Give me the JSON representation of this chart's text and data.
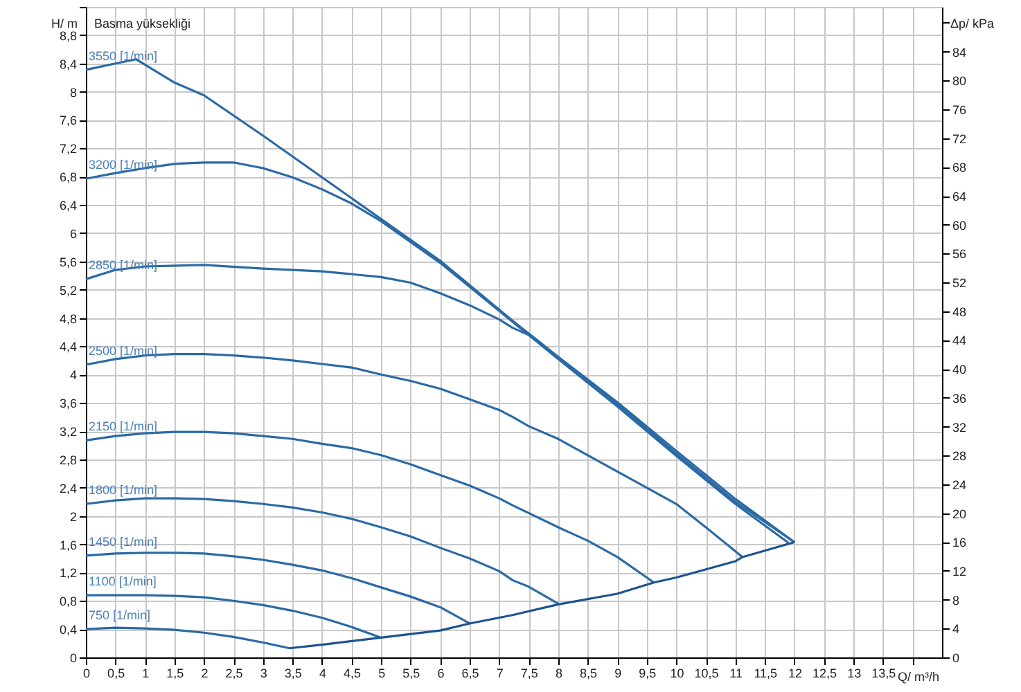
{
  "chart_data": {
    "type": "line",
    "xlabel": "Q/ m³/h",
    "ylabel": "H/ m",
    "y2label": "Δp/ kPa",
    "annotations": [
      "Basma yüksekliği"
    ],
    "grid": true,
    "xlim": [
      0,
      14.5
    ],
    "ylim": [
      0,
      9.2
    ],
    "y2lim": [
      0,
      90.2
    ],
    "xticks": [
      0,
      {
        "value": 0.5,
        "label": "0,5"
      },
      1,
      {
        "value": 1.5,
        "label": "1,5"
      },
      2,
      {
        "value": 2.5,
        "label": "2,5"
      },
      3,
      {
        "value": 3.5,
        "label": "3,5"
      },
      4,
      {
        "value": 4.5,
        "label": "4,5"
      },
      5,
      {
        "value": 5.5,
        "label": "5,5"
      },
      6,
      {
        "value": 6.5,
        "label": "6,5"
      },
      7,
      {
        "value": 7.5,
        "label": "7,5"
      },
      8,
      {
        "value": 8.5,
        "label": "8,5"
      },
      9,
      {
        "value": 9.5,
        "label": "9,5"
      },
      10,
      {
        "value": 10.5,
        "label": "10,5"
      },
      11,
      {
        "value": 11.5,
        "label": "11,5"
      },
      12,
      {
        "value": 12.5,
        "label": "12,5"
      },
      13,
      {
        "value": 13.5,
        "label": "13,5"
      },
      {
        "value": 14,
        "label": null
      }
    ],
    "yticks": [
      0,
      {
        "value": 0.4,
        "label": "0,4"
      },
      {
        "value": 0.8,
        "label": "0,8"
      },
      {
        "value": 1.2,
        "label": "1,2"
      },
      {
        "value": 1.6,
        "label": "1,6"
      },
      2,
      {
        "value": 2.4,
        "label": "2,4"
      },
      {
        "value": 2.8,
        "label": "2,8"
      },
      {
        "value": 3.2,
        "label": "3,2"
      },
      {
        "value": 3.6,
        "label": "3,6"
      },
      4,
      {
        "value": 4.4,
        "label": "4,4"
      },
      {
        "value": 4.8,
        "label": "4,8"
      },
      {
        "value": 5.2,
        "label": "5,2"
      },
      {
        "value": 5.6,
        "label": "5,6"
      },
      6,
      {
        "value": 6.4,
        "label": "6,4"
      },
      {
        "value": 6.8,
        "label": "6,8"
      },
      {
        "value": 7.2,
        "label": "7,2"
      },
      {
        "value": 7.6,
        "label": "7,6"
      },
      8,
      {
        "value": 8.4,
        "label": "8,4"
      },
      {
        "value": 8.8,
        "label": "8,8"
      },
      {
        "value": 9.2,
        "label": null
      }
    ],
    "y2ticks": [
      0,
      4,
      8,
      12,
      16,
      20,
      24,
      28,
      32,
      36,
      40,
      44,
      48,
      52,
      56,
      60,
      64,
      68,
      72,
      76,
      80,
      84,
      {
        "value": 88,
        "label": null
      }
    ],
    "series": [
      {
        "name": "3550 [1/min]",
        "color": "#2b6aa6",
        "x": [
          0,
          0.5,
          0.85,
          1.5,
          2,
          3,
          4,
          5,
          6,
          7.23,
          8,
          9,
          10,
          11,
          12
        ],
        "values": [
          8.31,
          8.4,
          8.46,
          8.13,
          7.95,
          7.38,
          6.79,
          6.2,
          5.61,
          4.76,
          4.25,
          3.61,
          2.92,
          2.24,
          1.63
        ]
      },
      {
        "name": "3200 [1/min]",
        "color": "#2b6aa6",
        "x": [
          0,
          0.5,
          1,
          1.5,
          2,
          2.5,
          3,
          3.5,
          4,
          4.5,
          5,
          6,
          7,
          8,
          9,
          10,
          11,
          11.9
        ],
        "values": [
          6.77,
          6.85,
          6.92,
          6.98,
          7.0,
          7.0,
          6.92,
          6.79,
          6.62,
          6.42,
          6.17,
          5.58,
          4.9,
          4.22,
          3.55,
          2.85,
          2.17,
          1.62
        ]
      },
      {
        "name": "2850 [1/min]",
        "color": "#2b6aa6",
        "x": [
          0,
          0.5,
          1,
          2,
          3,
          4,
          5,
          5.5,
          6,
          6.5,
          7,
          7.23,
          7.5,
          8,
          9,
          10,
          11,
          12
        ],
        "values": [
          5.35,
          5.48,
          5.53,
          5.55,
          5.5,
          5.46,
          5.38,
          5.3,
          5.15,
          4.98,
          4.78,
          4.66,
          4.56,
          4.23,
          3.58,
          2.88,
          2.2,
          1.63
        ]
      },
      {
        "name": "2500 [1/min]",
        "color": "#2b6aa6",
        "x": [
          0,
          0.5,
          1,
          1.5,
          2,
          2.5,
          3,
          3.5,
          4,
          4.5,
          5,
          5.5,
          6,
          6.5,
          7,
          7.23,
          7.5,
          8,
          9,
          10,
          10.5,
          11.12
        ],
        "values": [
          4.14,
          4.22,
          4.27,
          4.29,
          4.29,
          4.27,
          4.24,
          4.2,
          4.15,
          4.1,
          4.0,
          3.91,
          3.8,
          3.65,
          3.5,
          3.4,
          3.27,
          3.09,
          2.63,
          2.17,
          1.84,
          1.42
        ]
      },
      {
        "name": "2150 [1/min]",
        "color": "#2b6aa6",
        "x": [
          0,
          0.5,
          1,
          1.5,
          2,
          2.5,
          3,
          3.5,
          4,
          4.5,
          5,
          5.5,
          6,
          6.5,
          7,
          7.23,
          8,
          8.5,
          9,
          9.62
        ],
        "values": [
          3.07,
          3.13,
          3.17,
          3.19,
          3.19,
          3.17,
          3.13,
          3.09,
          3.02,
          2.96,
          2.86,
          2.73,
          2.58,
          2.43,
          2.25,
          2.15,
          1.84,
          1.65,
          1.42,
          1.06
        ]
      },
      {
        "name": "1800 [1/min]",
        "color": "#2b6aa6",
        "x": [
          0,
          0.5,
          1,
          1.5,
          2,
          2.5,
          3,
          3.5,
          4,
          4.5,
          5,
          5.5,
          6,
          6.5,
          7,
          7.23,
          7.5,
          8
        ],
        "values": [
          2.17,
          2.22,
          2.25,
          2.25,
          2.24,
          2.21,
          2.17,
          2.12,
          2.05,
          1.96,
          1.84,
          1.71,
          1.55,
          1.4,
          1.22,
          1.09,
          1.0,
          0.76
        ]
      },
      {
        "name": "1450 [1/min]",
        "color": "#2b6aa6",
        "x": [
          0,
          0.5,
          1,
          1.5,
          2,
          2.5,
          3,
          3.5,
          4,
          4.5,
          5,
          5.5,
          6,
          6.5
        ],
        "values": [
          1.44,
          1.47,
          1.48,
          1.48,
          1.47,
          1.43,
          1.38,
          1.31,
          1.23,
          1.12,
          0.99,
          0.86,
          0.71,
          0.48
        ]
      },
      {
        "name": "1100 [1/min]",
        "color": "#2b6aa6",
        "x": [
          0,
          1,
          1.5,
          2,
          2.5,
          3,
          3.5,
          4,
          4.5,
          5
        ],
        "values": [
          0.88,
          0.88,
          0.87,
          0.85,
          0.8,
          0.74,
          0.66,
          0.56,
          0.43,
          0.28
        ]
      },
      {
        "name": "750 [1/min]",
        "color": "#2b6aa6",
        "x": [
          0,
          0.5,
          1,
          1.5,
          2,
          2.5,
          3,
          3.45
        ],
        "values": [
          0.4,
          0.42,
          0.41,
          0.39,
          0.35,
          0.29,
          0.21,
          0.13
        ]
      },
      {
        "color": "#1d5490",
        "x": [
          3.45,
          4,
          5,
          6,
          6.5,
          7.23,
          8,
          9,
          9.62,
          10,
          11,
          11.12,
          12
        ],
        "values": [
          0.13,
          0.18,
          0.28,
          0.38,
          0.48,
          0.6,
          0.75,
          0.9,
          1.06,
          1.13,
          1.36,
          1.42,
          1.63
        ]
      }
    ]
  }
}
